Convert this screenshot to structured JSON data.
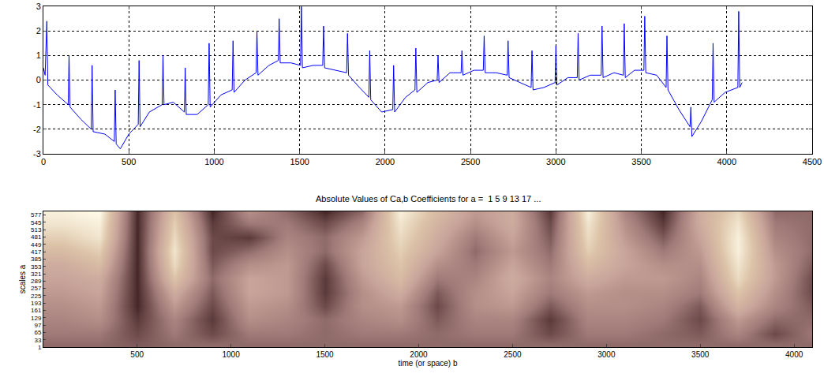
{
  "chart_data": [
    {
      "type": "line",
      "color": "#0000ff",
      "grid": true,
      "x": [
        0,
        10,
        20,
        26,
        80,
        145,
        150,
        156,
        220,
        280,
        285,
        291,
        360,
        415,
        420,
        426,
        450,
        500,
        555,
        560,
        566,
        620,
        695,
        700,
        706,
        760,
        825,
        830,
        836,
        900,
        965,
        970,
        976,
        1040,
        1105,
        1110,
        1116,
        1180,
        1245,
        1250,
        1256,
        1320,
        1375,
        1380,
        1386,
        1450,
        1505,
        1510,
        1516,
        1580,
        1635,
        1640,
        1646,
        1710,
        1775,
        1780,
        1786,
        1850,
        1905,
        1910,
        1916,
        1980,
        2045,
        2050,
        2056,
        2120,
        2175,
        2180,
        2186,
        2250,
        2305,
        2310,
        2316,
        2380,
        2445,
        2450,
        2456,
        2520,
        2575,
        2580,
        2586,
        2650,
        2715,
        2720,
        2726,
        2790,
        2855,
        2860,
        2866,
        2930,
        2995,
        3000,
        3006,
        3070,
        3125,
        3130,
        3136,
        3200,
        3265,
        3270,
        3276,
        3340,
        3395,
        3400,
        3406,
        3460,
        3515,
        3520,
        3526,
        3590,
        3645,
        3650,
        3656,
        3720,
        3785,
        3790,
        3796,
        3850,
        3915,
        3920,
        3926,
        3990,
        4065,
        4070,
        4076,
        4090
      ],
      "values": [
        0.5,
        0.2,
        2.4,
        -0.2,
        -0.6,
        -1.0,
        1.0,
        -1.1,
        -1.6,
        -2.0,
        0.6,
        -2.1,
        -2.2,
        -2.5,
        -0.4,
        -2.6,
        -2.8,
        -2.2,
        -1.8,
        0.8,
        -1.9,
        -1.3,
        -1.0,
        1.0,
        -1.0,
        -0.9,
        -1.3,
        0.5,
        -1.4,
        -1.4,
        -1.0,
        1.5,
        -1.1,
        -0.6,
        -0.4,
        1.6,
        -0.5,
        0.0,
        0.3,
        2.0,
        0.2,
        0.6,
        0.8,
        2.5,
        0.7,
        0.7,
        0.6,
        3.0,
        0.5,
        0.6,
        0.6,
        2.2,
        0.5,
        0.4,
        0.3,
        1.9,
        0.2,
        -0.3,
        -0.7,
        1.2,
        -0.8,
        -1.3,
        -1.2,
        0.6,
        -1.3,
        -0.7,
        -0.4,
        1.3,
        -0.5,
        -0.1,
        0.0,
        1.0,
        -0.1,
        0.3,
        0.3,
        1.2,
        0.2,
        0.4,
        0.4,
        1.8,
        0.3,
        0.3,
        0.2,
        1.6,
        0.1,
        -0.1,
        -0.3,
        1.2,
        -0.4,
        -0.3,
        -0.1,
        1.4,
        -0.2,
        0.1,
        0.1,
        1.9,
        0.0,
        0.2,
        0.2,
        2.2,
        0.1,
        0.3,
        0.2,
        2.3,
        0.1,
        0.4,
        0.4,
        2.6,
        0.3,
        0.2,
        -0.3,
        1.8,
        -0.4,
        -1.2,
        -1.9,
        -1.1,
        -2.3,
        -1.7,
        -0.8,
        1.5,
        -0.9,
        -0.5,
        -0.3,
        2.8,
        -0.3,
        -0.1
      ],
      "xlim": [
        0,
        4500
      ],
      "xticks": [
        0,
        500,
        1000,
        1500,
        2000,
        2500,
        3000,
        3500,
        4000,
        4500
      ],
      "ylim": [
        -3,
        3
      ],
      "yticks": [
        -3,
        -2,
        -1,
        0,
        1,
        2,
        3
      ]
    },
    {
      "type": "heatmap",
      "title": "Absolute Values of Ca,b Coefficients for a =  1 5 9 13 17 ...",
      "xlabel": "time (or space) b",
      "ylabel": "scales a",
      "x": [
        100,
        300,
        500,
        700,
        900,
        1100,
        1300,
        1500,
        1700,
        1900,
        2100,
        2300,
        2500,
        2700,
        2900,
        3100,
        3300,
        3500,
        3700,
        3900,
        4100
      ],
      "y": [
        10,
        60,
        120,
        180,
        240,
        300,
        360,
        420,
        480,
        540,
        590
      ],
      "z": [
        [
          0.3,
          0.35,
          0.4,
          0.45,
          0.5,
          0.55,
          0.6,
          0.7,
          0.8,
          0.9,
          0.95
        ],
        [
          0.3,
          0.35,
          0.45,
          0.5,
          0.55,
          0.6,
          0.7,
          0.8,
          0.9,
          0.95,
          1.0
        ],
        [
          0.25,
          0.2,
          0.15,
          0.1,
          0.1,
          0.1,
          0.1,
          0.1,
          0.1,
          0.1,
          0.1
        ],
        [
          0.3,
          0.35,
          0.4,
          0.5,
          0.6,
          0.75,
          0.85,
          0.9,
          0.85,
          0.8,
          0.75
        ],
        [
          0.3,
          0.2,
          0.15,
          0.2,
          0.25,
          0.3,
          0.25,
          0.2,
          0.2,
          0.15,
          0.1
        ],
        [
          0.3,
          0.35,
          0.45,
          0.5,
          0.55,
          0.55,
          0.45,
          0.3,
          0.15,
          0.35,
          0.45
        ],
        [
          0.3,
          0.35,
          0.4,
          0.45,
          0.5,
          0.5,
          0.5,
          0.45,
          0.4,
          0.35,
          0.3
        ],
        [
          0.3,
          0.3,
          0.3,
          0.2,
          0.15,
          0.15,
          0.2,
          0.3,
          0.3,
          0.2,
          0.1
        ],
        [
          0.3,
          0.35,
          0.4,
          0.45,
          0.45,
          0.5,
          0.55,
          0.55,
          0.5,
          0.4,
          0.3
        ],
        [
          0.3,
          0.35,
          0.45,
          0.5,
          0.6,
          0.7,
          0.75,
          0.8,
          0.85,
          0.9,
          0.95
        ],
        [
          0.3,
          0.3,
          0.25,
          0.2,
          0.25,
          0.35,
          0.45,
          0.55,
          0.6,
          0.65,
          0.7
        ],
        [
          0.3,
          0.35,
          0.4,
          0.45,
          0.45,
          0.4,
          0.35,
          0.3,
          0.35,
          0.45,
          0.5
        ],
        [
          0.3,
          0.35,
          0.4,
          0.5,
          0.55,
          0.6,
          0.55,
          0.5,
          0.55,
          0.6,
          0.6
        ],
        [
          0.3,
          0.2,
          0.15,
          0.25,
          0.35,
          0.4,
          0.35,
          0.3,
          0.25,
          0.2,
          0.15
        ],
        [
          0.3,
          0.35,
          0.4,
          0.45,
          0.5,
          0.6,
          0.7,
          0.8,
          0.85,
          0.9,
          0.95
        ],
        [
          0.3,
          0.35,
          0.4,
          0.45,
          0.45,
          0.5,
          0.55,
          0.55,
          0.5,
          0.45,
          0.4
        ],
        [
          0.3,
          0.3,
          0.35,
          0.4,
          0.45,
          0.5,
          0.45,
          0.35,
          0.25,
          0.15,
          0.1
        ],
        [
          0.3,
          0.25,
          0.2,
          0.25,
          0.35,
          0.4,
          0.45,
          0.5,
          0.55,
          0.6,
          0.6
        ],
        [
          0.3,
          0.4,
          0.5,
          0.65,
          0.75,
          0.85,
          0.9,
          0.95,
          0.95,
          0.9,
          0.85
        ],
        [
          0.3,
          0.2,
          0.3,
          0.4,
          0.45,
          0.5,
          0.5,
          0.45,
          0.4,
          0.35,
          0.3
        ],
        [
          0.3,
          0.35,
          0.3,
          0.25,
          0.2,
          0.2,
          0.25,
          0.3,
          0.3,
          0.3,
          0.3
        ]
      ],
      "zlim": [
        0,
        1
      ],
      "xlim": [
        1,
        4096
      ],
      "xticks": [
        500,
        1000,
        1500,
        2000,
        2500,
        3000,
        3500,
        4000
      ],
      "ylim": [
        1,
        593
      ],
      "yticks": [
        1,
        33,
        65,
        97,
        129,
        161,
        193,
        225,
        257,
        289,
        321,
        353,
        385,
        417,
        449,
        481,
        513,
        545,
        577
      ]
    }
  ]
}
